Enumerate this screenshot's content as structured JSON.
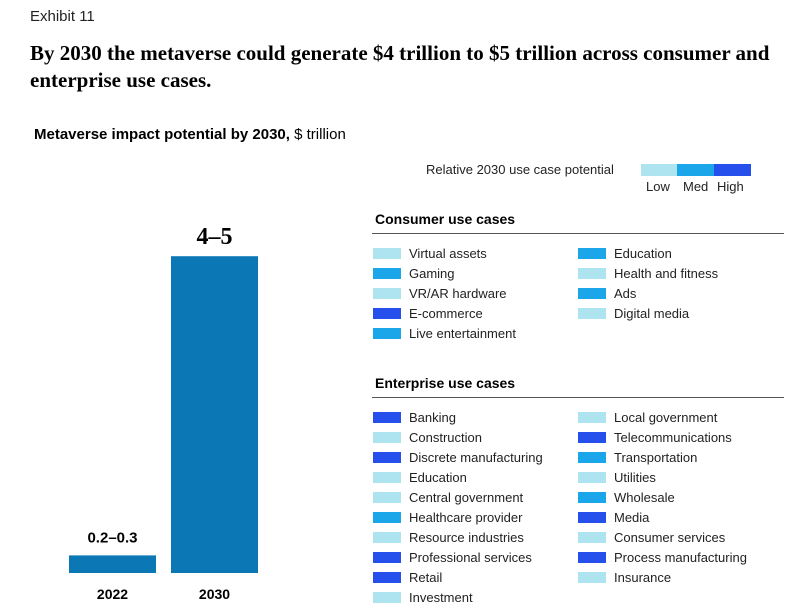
{
  "exhibit": "Exhibit 11",
  "headline": "By 2030 the metaverse could generate $4 trillion to $5 trillion across consumer and enterprise use cases.",
  "subtitle": {
    "bold": "Metaverse impact potential by 2030,",
    "normal": " $ trillion"
  },
  "colors": {
    "bar": "#0b77b5",
    "low": "#aee4ef",
    "med": "#1aa6e8",
    "high": "#2550ec"
  },
  "chart_data": {
    "type": "bar",
    "title": "Metaverse impact potential by 2030, $ trillion",
    "categories": [
      "2022",
      "2030"
    ],
    "ranges": [
      [
        0.2,
        0.3
      ],
      [
        4,
        5
      ]
    ],
    "values": [
      0.25,
      4.5
    ],
    "value_labels": [
      "0.2–0.3",
      "4–5"
    ],
    "xlabel": "",
    "ylabel": "$ trillion",
    "ylim": [
      0,
      5
    ]
  },
  "legend": {
    "title": "Relative 2030 use case potential",
    "low": "Low",
    "med": "Med",
    "high": "High"
  },
  "consumer": {
    "title": "Consumer use cases",
    "col1": [
      {
        "label": "Virtual assets",
        "level": "low"
      },
      {
        "label": "Gaming",
        "level": "med"
      },
      {
        "label": "VR/AR hardware",
        "level": "low"
      },
      {
        "label": "E-commerce",
        "level": "high"
      },
      {
        "label": "Live entertainment",
        "level": "med"
      }
    ],
    "col2": [
      {
        "label": "Education",
        "level": "med"
      },
      {
        "label": "Health and fitness",
        "level": "low"
      },
      {
        "label": "Ads",
        "level": "med"
      },
      {
        "label": "Digital media",
        "level": "low"
      }
    ]
  },
  "enterprise": {
    "title": "Enterprise use cases",
    "col1": [
      {
        "label": "Banking",
        "level": "high"
      },
      {
        "label": "Construction",
        "level": "low"
      },
      {
        "label": "Discrete manufacturing",
        "level": "high"
      },
      {
        "label": "Education",
        "level": "low"
      },
      {
        "label": "Central government",
        "level": "low"
      },
      {
        "label": "Healthcare provider",
        "level": "med"
      },
      {
        "label": "Resource industries",
        "level": "low"
      },
      {
        "label": "Professional services",
        "level": "high"
      },
      {
        "label": "Retail",
        "level": "high"
      },
      {
        "label": "Investment",
        "level": "low"
      }
    ],
    "col2": [
      {
        "label": "Local government",
        "level": "low"
      },
      {
        "label": "Telecommunications",
        "level": "high"
      },
      {
        "label": "Transportation",
        "level": "med"
      },
      {
        "label": "Utilities",
        "level": "low"
      },
      {
        "label": "Wholesale",
        "level": "med"
      },
      {
        "label": "Media",
        "level": "high"
      },
      {
        "label": "Consumer services",
        "level": "low"
      },
      {
        "label": "Process manufacturing",
        "level": "high"
      },
      {
        "label": "Insurance",
        "level": "low"
      }
    ]
  }
}
